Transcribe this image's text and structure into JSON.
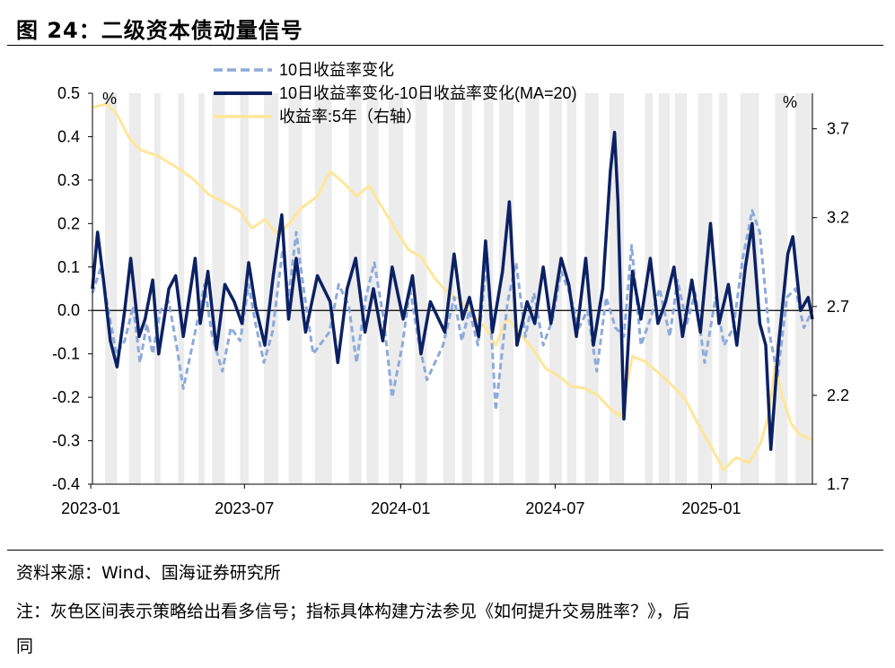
{
  "title": "图 24：二级资本债动量信号",
  "source": "资料来源：Wind、国海证券研究所",
  "note_line1": "注：灰色区间表示策略给出看多信号；指标具体构建方法参见《如何提升交易胜率？》，后",
  "note_line2": "同",
  "colors": {
    "series_10d": "#8eaadb",
    "series_diff": "#0c2163",
    "series_yield": "#ffe699",
    "shade": "#ececec"
  },
  "chart_data": {
    "type": "line",
    "left_unit": "%",
    "right_unit": "%",
    "x_ticks": [
      "2023-01",
      "2023-07",
      "2024-01",
      "2024-07",
      "2025-01"
    ],
    "left_ylim": [
      -0.4,
      0.5
    ],
    "left_ticks": [
      "0.5",
      "0.4",
      "0.3",
      "0.2",
      "0.1",
      "0.0",
      "-0.1",
      "-0.2",
      "-0.3",
      "-0.4"
    ],
    "right_ylim": [
      1.7,
      3.9
    ],
    "right_ticks": [
      "3.7",
      "3.2",
      "2.7",
      "2.2",
      "1.7"
    ],
    "legend": [
      "10日收益率变化",
      "10日收益率变化-10日收益率变化(MA=20)",
      "收益率:5年（右轴）"
    ],
    "x_range": [
      "2023-01-03",
      "2025-04-30"
    ],
    "shaded_ranges": [
      [
        "2023-01-18",
        "2023-02-01"
      ],
      [
        "2023-02-15",
        "2023-03-01"
      ],
      [
        "2023-03-17",
        "2023-03-24"
      ],
      [
        "2023-04-14",
        "2023-04-21"
      ],
      [
        "2023-05-08",
        "2023-05-15"
      ],
      [
        "2023-05-24",
        "2023-06-08"
      ],
      [
        "2023-06-26",
        "2023-07-06"
      ],
      [
        "2023-07-24",
        "2023-08-10"
      ],
      [
        "2023-08-22",
        "2023-09-07"
      ],
      [
        "2023-09-22",
        "2023-10-12"
      ],
      [
        "2023-11-01",
        "2023-11-16"
      ],
      [
        "2023-11-22",
        "2023-12-06"
      ],
      [
        "2023-12-18",
        "2024-01-04"
      ],
      [
        "2024-01-18",
        "2024-02-01"
      ],
      [
        "2024-02-20",
        "2024-03-05"
      ],
      [
        "2024-03-13",
        "2024-03-25"
      ],
      [
        "2024-04-08",
        "2024-04-19"
      ],
      [
        "2024-04-26",
        "2024-05-13"
      ],
      [
        "2024-05-27",
        "2024-06-12"
      ],
      [
        "2024-06-24",
        "2024-07-09"
      ],
      [
        "2024-07-15",
        "2024-07-26"
      ],
      [
        "2024-08-05",
        "2024-08-21"
      ],
      [
        "2024-09-03",
        "2024-09-20"
      ],
      [
        "2024-10-15",
        "2024-10-24"
      ],
      [
        "2024-10-31",
        "2024-11-13"
      ],
      [
        "2024-11-19",
        "2024-12-03"
      ],
      [
        "2024-12-16",
        "2025-01-02"
      ],
      [
        "2025-01-10",
        "2025-01-20"
      ],
      [
        "2025-02-04",
        "2025-02-26"
      ],
      [
        "2025-03-17",
        "2025-04-01"
      ],
      [
        "2025-04-10",
        "2025-04-30"
      ]
    ],
    "series": [
      {
        "name": "10日收益率变化",
        "axis": "left",
        "style": "dashed",
        "points": [
          [
            "2023-01-03",
            0.04
          ],
          [
            "2023-01-13",
            0.1
          ],
          [
            "2023-01-20",
            0.02
          ],
          [
            "2023-01-31",
            -0.1
          ],
          [
            "2023-02-10",
            -0.07
          ],
          [
            "2023-02-20",
            0.01
          ],
          [
            "2023-02-28",
            -0.12
          ],
          [
            "2023-03-08",
            -0.03
          ],
          [
            "2023-03-15",
            -0.1
          ],
          [
            "2023-03-24",
            0.0
          ],
          [
            "2023-04-03",
            0.02
          ],
          [
            "2023-04-12",
            -0.08
          ],
          [
            "2023-04-20",
            -0.18
          ],
          [
            "2023-05-04",
            -0.05
          ],
          [
            "2023-05-15",
            0.06
          ],
          [
            "2023-05-24",
            -0.06
          ],
          [
            "2023-06-05",
            -0.14
          ],
          [
            "2023-06-15",
            -0.04
          ],
          [
            "2023-06-26",
            -0.07
          ],
          [
            "2023-07-06",
            0.06
          ],
          [
            "2023-07-14",
            -0.03
          ],
          [
            "2023-07-24",
            -0.12
          ],
          [
            "2023-08-03",
            -0.05
          ],
          [
            "2023-08-15",
            0.14
          ],
          [
            "2023-08-22",
            0.03
          ],
          [
            "2023-08-31",
            0.18
          ],
          [
            "2023-09-08",
            0.06
          ],
          [
            "2023-09-20",
            -0.1
          ],
          [
            "2023-10-09",
            -0.05
          ],
          [
            "2023-10-20",
            0.06
          ],
          [
            "2023-11-01",
            0.01
          ],
          [
            "2023-11-10",
            -0.12
          ],
          [
            "2023-11-21",
            0.03
          ],
          [
            "2023-12-01",
            0.11
          ],
          [
            "2023-12-12",
            -0.02
          ],
          [
            "2023-12-22",
            -0.2
          ],
          [
            "2024-01-03",
            -0.08
          ],
          [
            "2024-01-12",
            0.05
          ],
          [
            "2024-01-22",
            -0.07
          ],
          [
            "2024-02-01",
            -0.16
          ],
          [
            "2024-02-20",
            -0.08
          ],
          [
            "2024-03-04",
            0.03
          ],
          [
            "2024-03-13",
            -0.07
          ],
          [
            "2024-03-22",
            0.0
          ],
          [
            "2024-04-01",
            -0.08
          ],
          [
            "2024-04-12",
            0.12
          ],
          [
            "2024-04-22",
            -0.23
          ],
          [
            "2024-05-06",
            0.02
          ],
          [
            "2024-05-16",
            0.11
          ],
          [
            "2024-05-27",
            -0.06
          ],
          [
            "2024-06-06",
            0.04
          ],
          [
            "2024-06-17",
            -0.08
          ],
          [
            "2024-06-28",
            -0.02
          ],
          [
            "2024-07-08",
            0.09
          ],
          [
            "2024-07-18",
            0.04
          ],
          [
            "2024-07-29",
            -0.04
          ],
          [
            "2024-08-08",
            0.0
          ],
          [
            "2024-08-19",
            -0.14
          ],
          [
            "2024-08-30",
            0.03
          ],
          [
            "2024-09-10",
            -0.04
          ],
          [
            "2024-09-20",
            -0.06
          ],
          [
            "2024-09-29",
            0.15
          ],
          [
            "2024-10-10",
            -0.08
          ],
          [
            "2024-10-21",
            -0.02
          ],
          [
            "2024-11-01",
            0.05
          ],
          [
            "2024-11-13",
            -0.06
          ],
          [
            "2024-11-22",
            0.07
          ],
          [
            "2024-12-03",
            -0.03
          ],
          [
            "2024-12-13",
            0.04
          ],
          [
            "2024-12-24",
            -0.12
          ],
          [
            "2025-01-06",
            0.03
          ],
          [
            "2025-01-16",
            -0.08
          ],
          [
            "2025-01-27",
            -0.04
          ],
          [
            "2025-02-07",
            0.12
          ],
          [
            "2025-02-18",
            0.23
          ],
          [
            "2025-02-27",
            0.18
          ],
          [
            "2025-03-10",
            -0.05
          ],
          [
            "2025-03-20",
            -0.15
          ],
          [
            "2025-03-31",
            0.03
          ],
          [
            "2025-04-10",
            0.05
          ],
          [
            "2025-04-20",
            -0.04
          ],
          [
            "2025-04-30",
            0.0
          ]
        ]
      },
      {
        "name": "10日收益率变化-10日收益率变化(MA=20)",
        "axis": "left",
        "style": "solid",
        "points": [
          [
            "2023-01-03",
            0.05
          ],
          [
            "2023-01-09",
            0.18
          ],
          [
            "2023-01-16",
            0.07
          ],
          [
            "2023-01-24",
            -0.07
          ],
          [
            "2023-02-01",
            -0.13
          ],
          [
            "2023-02-10",
            0.0
          ],
          [
            "2023-02-17",
            0.12
          ],
          [
            "2023-02-27",
            -0.06
          ],
          [
            "2023-03-06",
            -0.02
          ],
          [
            "2023-03-15",
            0.07
          ],
          [
            "2023-03-22",
            -0.1
          ],
          [
            "2023-04-03",
            0.05
          ],
          [
            "2023-04-11",
            0.08
          ],
          [
            "2023-04-20",
            -0.06
          ],
          [
            "2023-05-04",
            0.12
          ],
          [
            "2023-05-10",
            -0.03
          ],
          [
            "2023-05-19",
            0.09
          ],
          [
            "2023-05-29",
            -0.09
          ],
          [
            "2023-06-08",
            0.06
          ],
          [
            "2023-06-19",
            0.02
          ],
          [
            "2023-06-28",
            -0.03
          ],
          [
            "2023-07-06",
            0.11
          ],
          [
            "2023-07-14",
            0.01
          ],
          [
            "2023-07-25",
            -0.08
          ],
          [
            "2023-08-04",
            0.08
          ],
          [
            "2023-08-14",
            0.22
          ],
          [
            "2023-08-22",
            -0.02
          ],
          [
            "2023-08-31",
            0.12
          ],
          [
            "2023-09-11",
            -0.05
          ],
          [
            "2023-09-25",
            0.08
          ],
          [
            "2023-10-10",
            0.02
          ],
          [
            "2023-10-19",
            -0.12
          ],
          [
            "2023-10-30",
            0.05
          ],
          [
            "2023-11-09",
            0.12
          ],
          [
            "2023-11-20",
            -0.05
          ],
          [
            "2023-11-30",
            0.05
          ],
          [
            "2023-12-11",
            -0.07
          ],
          [
            "2023-12-22",
            0.1
          ],
          [
            "2024-01-04",
            -0.02
          ],
          [
            "2024-01-15",
            0.08
          ],
          [
            "2024-01-25",
            -0.1
          ],
          [
            "2024-02-05",
            0.02
          ],
          [
            "2024-02-22",
            -0.05
          ],
          [
            "2024-03-04",
            0.13
          ],
          [
            "2024-03-14",
            -0.02
          ],
          [
            "2024-03-22",
            0.03
          ],
          [
            "2024-04-02",
            -0.06
          ],
          [
            "2024-04-10",
            0.16
          ],
          [
            "2024-04-18",
            -0.05
          ],
          [
            "2024-04-30",
            0.09
          ],
          [
            "2024-05-08",
            0.25
          ],
          [
            "2024-05-17",
            -0.08
          ],
          [
            "2024-05-29",
            0.02
          ],
          [
            "2024-06-07",
            -0.03
          ],
          [
            "2024-06-17",
            0.1
          ],
          [
            "2024-06-26",
            -0.03
          ],
          [
            "2024-07-08",
            0.12
          ],
          [
            "2024-07-17",
            0.06
          ],
          [
            "2024-07-26",
            -0.06
          ],
          [
            "2024-08-06",
            0.12
          ],
          [
            "2024-08-15",
            -0.08
          ],
          [
            "2024-08-26",
            0.05
          ],
          [
            "2024-09-04",
            0.32
          ],
          [
            "2024-09-09",
            0.41
          ],
          [
            "2024-09-13",
            0.25
          ],
          [
            "2024-09-20",
            -0.25
          ],
          [
            "2024-09-30",
            0.09
          ],
          [
            "2024-10-10",
            -0.02
          ],
          [
            "2024-10-21",
            0.12
          ],
          [
            "2024-10-30",
            -0.03
          ],
          [
            "2024-11-08",
            0.02
          ],
          [
            "2024-11-18",
            0.1
          ],
          [
            "2024-11-28",
            -0.06
          ],
          [
            "2024-12-09",
            0.07
          ],
          [
            "2024-12-19",
            -0.05
          ],
          [
            "2024-12-31",
            0.2
          ],
          [
            "2025-01-10",
            -0.03
          ],
          [
            "2025-01-21",
            0.06
          ],
          [
            "2025-01-31",
            -0.08
          ],
          [
            "2025-02-10",
            0.1
          ],
          [
            "2025-02-18",
            0.2
          ],
          [
            "2025-02-27",
            -0.03
          ],
          [
            "2025-03-06",
            -0.08
          ],
          [
            "2025-03-12",
            -0.32
          ],
          [
            "2025-03-21",
            -0.08
          ],
          [
            "2025-04-01",
            0.13
          ],
          [
            "2025-04-07",
            0.17
          ],
          [
            "2025-04-16",
            0.0
          ],
          [
            "2025-04-25",
            0.03
          ],
          [
            "2025-04-30",
            -0.02
          ]
        ]
      },
      {
        "name": "收益率:5年（右轴）",
        "axis": "right",
        "style": "solid",
        "points": [
          [
            "2023-01-03",
            3.82
          ],
          [
            "2023-01-20",
            3.84
          ],
          [
            "2023-02-01",
            3.78
          ],
          [
            "2023-02-15",
            3.65
          ],
          [
            "2023-03-01",
            3.58
          ],
          [
            "2023-03-20",
            3.55
          ],
          [
            "2023-04-10",
            3.49
          ],
          [
            "2023-05-01",
            3.42
          ],
          [
            "2023-05-20",
            3.33
          ],
          [
            "2023-06-10",
            3.28
          ],
          [
            "2023-06-25",
            3.24
          ],
          [
            "2023-07-10",
            3.14
          ],
          [
            "2023-07-25",
            3.19
          ],
          [
            "2023-08-10",
            3.1
          ],
          [
            "2023-08-25",
            3.18
          ],
          [
            "2023-09-05",
            3.25
          ],
          [
            "2023-09-25",
            3.32
          ],
          [
            "2023-10-10",
            3.46
          ],
          [
            "2023-10-25",
            3.4
          ],
          [
            "2023-11-10",
            3.32
          ],
          [
            "2023-11-25",
            3.38
          ],
          [
            "2023-12-10",
            3.26
          ],
          [
            "2023-12-25",
            3.14
          ],
          [
            "2024-01-10",
            3.02
          ],
          [
            "2024-01-25",
            2.98
          ],
          [
            "2024-02-10",
            2.86
          ],
          [
            "2024-02-25",
            2.78
          ],
          [
            "2024-03-10",
            2.74
          ],
          [
            "2024-03-25",
            2.66
          ],
          [
            "2024-04-10",
            2.58
          ],
          [
            "2024-04-22",
            2.48
          ],
          [
            "2024-05-05",
            2.64
          ],
          [
            "2024-05-20",
            2.55
          ],
          [
            "2024-06-05",
            2.46
          ],
          [
            "2024-06-20",
            2.35
          ],
          [
            "2024-07-05",
            2.31
          ],
          [
            "2024-07-20",
            2.25
          ],
          [
            "2024-08-05",
            2.24
          ],
          [
            "2024-08-20",
            2.2
          ],
          [
            "2024-09-05",
            2.12
          ],
          [
            "2024-09-16",
            2.08
          ],
          [
            "2024-09-30",
            2.42
          ],
          [
            "2024-10-15",
            2.39
          ],
          [
            "2024-10-30",
            2.33
          ],
          [
            "2024-11-15",
            2.26
          ],
          [
            "2024-12-01",
            2.18
          ],
          [
            "2024-12-15",
            2.05
          ],
          [
            "2025-01-02",
            1.9
          ],
          [
            "2025-01-15",
            1.78
          ],
          [
            "2025-01-30",
            1.85
          ],
          [
            "2025-02-14",
            1.82
          ],
          [
            "2025-02-28",
            1.93
          ],
          [
            "2025-03-10",
            2.1
          ],
          [
            "2025-03-17",
            2.38
          ],
          [
            "2025-03-25",
            2.2
          ],
          [
            "2025-04-05",
            2.04
          ],
          [
            "2025-04-15",
            1.98
          ],
          [
            "2025-04-30",
            1.95
          ]
        ]
      }
    ]
  }
}
